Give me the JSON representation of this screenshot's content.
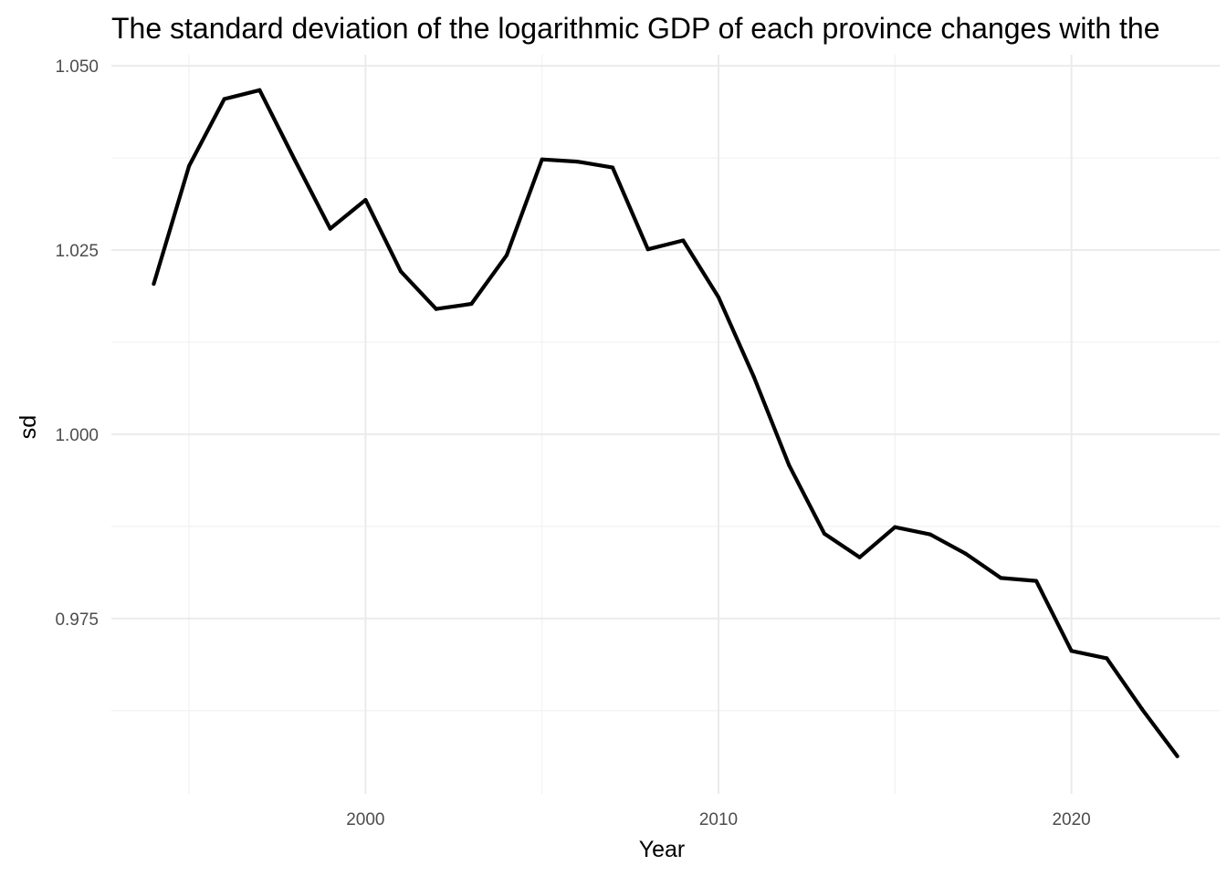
{
  "chart_data": {
    "type": "line",
    "title": "The standard deviation of the logarithmic GDP of each province changes with the",
    "xlabel": "Year",
    "ylabel": "sd",
    "xlim": [
      1992.8,
      2024.2
    ],
    "ylim": [
      0.9512,
      1.0515
    ],
    "x_ticks": [
      2000,
      2010,
      2020
    ],
    "x_tick_labels": [
      "2000",
      "2010",
      "2020"
    ],
    "y_ticks": [
      0.975,
      1.0,
      1.025,
      1.05
    ],
    "y_tick_labels": [
      "0.975",
      "1.000",
      "1.025",
      "1.050"
    ],
    "grid": true,
    "legend": "none",
    "line_color": "#000000",
    "series": [
      {
        "x": [
          1994,
          1995,
          1996,
          1997,
          1998,
          1999,
          2000,
          2001,
          2002,
          2003,
          2004,
          2005,
          2006,
          2007,
          2008,
          2009,
          2010,
          2011,
          2012,
          2013,
          2014,
          2015,
          2016,
          2017,
          2018,
          2019,
          2020,
          2021,
          2022,
          2023
        ],
        "values": [
          1.0204,
          1.0364,
          1.0455,
          1.0467,
          1.0372,
          1.0279,
          1.0318,
          1.0221,
          1.017,
          1.0177,
          1.0243,
          1.0373,
          1.037,
          1.0362,
          1.0251,
          1.0263,
          1.0186,
          1.0078,
          0.9958,
          0.9865,
          0.9833,
          0.9874,
          0.9864,
          0.9838,
          0.9805,
          0.9801,
          0.9706,
          0.9696,
          0.9627,
          0.9563
        ]
      }
    ]
  }
}
